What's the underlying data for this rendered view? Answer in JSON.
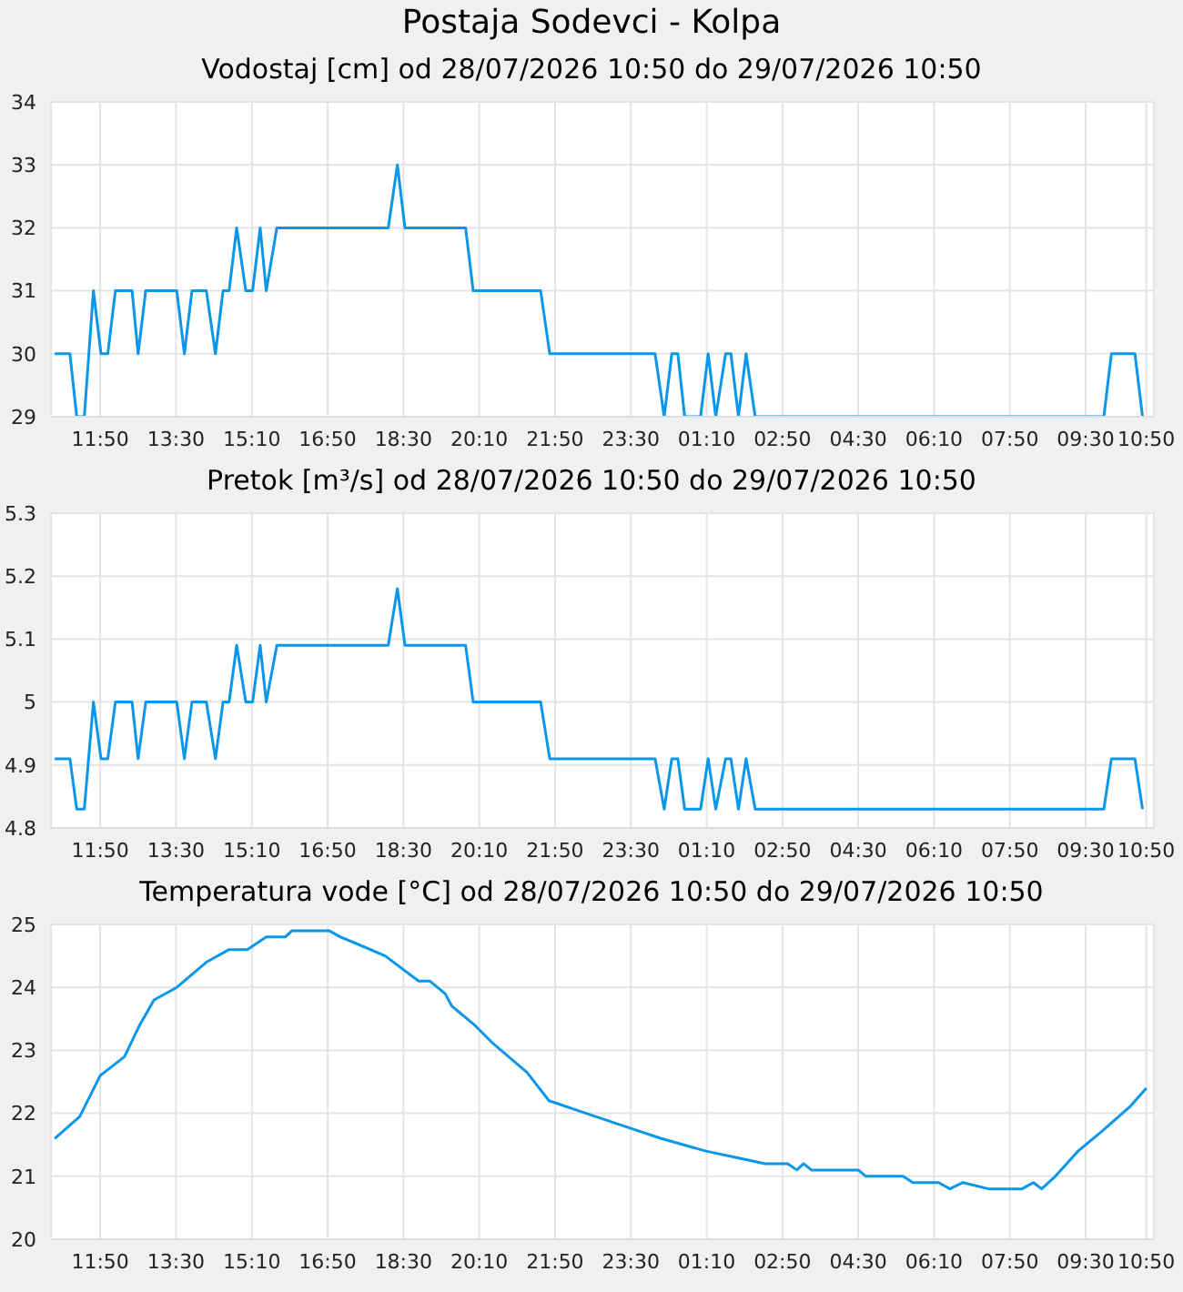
{
  "chart_data": [
    {
      "type": "line",
      "title": "Postaja Sodevci - Kolpa",
      "subtitle": "Vodostaj [cm] od 28/07/2026 10:50 do 29/07/2026 10:50",
      "grid": true,
      "legend": false,
      "marker": "none",
      "xlim": [
        "2026-07-28T10:45",
        "2026-07-29T11:00"
      ],
      "xticks": [
        {
          "value": "2026-07-28T11:50",
          "label": "11:50"
        },
        {
          "value": "2026-07-28T13:30",
          "label": "13:30"
        },
        {
          "value": "2026-07-28T15:10",
          "label": "15:10"
        },
        {
          "value": "2026-07-28T16:50",
          "label": "16:50"
        },
        {
          "value": "2026-07-28T18:30",
          "label": "18:30"
        },
        {
          "value": "2026-07-28T20:10",
          "label": "20:10"
        },
        {
          "value": "2026-07-28T21:50",
          "label": "21:50"
        },
        {
          "value": "2026-07-28T23:30",
          "label": "23:30"
        },
        {
          "value": "2026-07-29T01:10",
          "label": "01:10"
        },
        {
          "value": "2026-07-29T02:50",
          "label": "02:50"
        },
        {
          "value": "2026-07-29T04:30",
          "label": "04:30"
        },
        {
          "value": "2026-07-29T06:10",
          "label": "06:10"
        },
        {
          "value": "2026-07-29T07:50",
          "label": "07:50"
        },
        {
          "value": "2026-07-29T09:30",
          "label": "09:30"
        },
        {
          "value": "2026-07-29T10:50",
          "label": "10:50"
        }
      ],
      "ylim": [
        29,
        34
      ],
      "yticks": [
        29,
        30,
        31,
        32,
        33,
        34
      ],
      "series": [
        {
          "color": "#0a96ea",
          "x": [
            "2026-07-28T10:50",
            "2026-07-28T11:10",
            "2026-07-28T11:19",
            "2026-07-28T11:29",
            "2026-07-28T11:41",
            "2026-07-28T11:51",
            "2026-07-28T12:00",
            "2026-07-28T12:10",
            "2026-07-28T12:32",
            "2026-07-28T12:40",
            "2026-07-28T12:50",
            "2026-07-28T13:31",
            "2026-07-28T13:41",
            "2026-07-28T13:51",
            "2026-07-28T14:10",
            "2026-07-28T14:22",
            "2026-07-28T14:32",
            "2026-07-28T14:40",
            "2026-07-28T14:50",
            "2026-07-28T15:02",
            "2026-07-28T15:11",
            "2026-07-28T15:21",
            "2026-07-28T15:29",
            "2026-07-28T15:43",
            "2026-07-28T18:10",
            "2026-07-28T18:22",
            "2026-07-28T18:32",
            "2026-07-28T19:52",
            "2026-07-28T20:02",
            "2026-07-28T21:31",
            "2026-07-28T21:43",
            "2026-07-29T00:02",
            "2026-07-29T00:14",
            "2026-07-29T00:24",
            "2026-07-29T00:32",
            "2026-07-29T00:41",
            "2026-07-29T01:02",
            "2026-07-29T01:12",
            "2026-07-29T01:22",
            "2026-07-29T01:35",
            "2026-07-29T01:42",
            "2026-07-29T01:52",
            "2026-07-29T02:02",
            "2026-07-29T02:14",
            "2026-07-29T09:54",
            "2026-07-29T10:04",
            "2026-07-29T10:35",
            "2026-07-29T10:45"
          ],
          "values": [
            30,
            30,
            29,
            29,
            31,
            30,
            30,
            31,
            31,
            30,
            31,
            31,
            30,
            31,
            31,
            30,
            31,
            31,
            32,
            31,
            31,
            32,
            31,
            32,
            32,
            33,
            32,
            32,
            31,
            31,
            30,
            30,
            29,
            30,
            30,
            29,
            29,
            30,
            29,
            30,
            30,
            29,
            30,
            29,
            29,
            30,
            30,
            29
          ]
        }
      ]
    },
    {
      "type": "line",
      "title": "Pretok [m³/s] od 28/07/2026 10:50 do 29/07/2026 10:50",
      "grid": true,
      "legend": false,
      "marker": "none",
      "xlim": [
        "2026-07-28T10:45",
        "2026-07-29T11:00"
      ],
      "xticks": [
        {
          "value": "2026-07-28T11:50",
          "label": "11:50"
        },
        {
          "value": "2026-07-28T13:30",
          "label": "13:30"
        },
        {
          "value": "2026-07-28T15:10",
          "label": "15:10"
        },
        {
          "value": "2026-07-28T16:50",
          "label": "16:50"
        },
        {
          "value": "2026-07-28T18:30",
          "label": "18:30"
        },
        {
          "value": "2026-07-28T20:10",
          "label": "20:10"
        },
        {
          "value": "2026-07-28T21:50",
          "label": "21:50"
        },
        {
          "value": "2026-07-28T23:30",
          "label": "23:30"
        },
        {
          "value": "2026-07-29T01:10",
          "label": "01:10"
        },
        {
          "value": "2026-07-29T02:50",
          "label": "02:50"
        },
        {
          "value": "2026-07-29T04:30",
          "label": "04:30"
        },
        {
          "value": "2026-07-29T06:10",
          "label": "06:10"
        },
        {
          "value": "2026-07-29T07:50",
          "label": "07:50"
        },
        {
          "value": "2026-07-29T09:30",
          "label": "09:30"
        },
        {
          "value": "2026-07-29T10:50",
          "label": "10:50"
        }
      ],
      "ylim": [
        4.8,
        5.3
      ],
      "yticks": [
        4.8,
        4.9,
        5,
        5.1,
        5.2,
        5.3
      ],
      "series": [
        {
          "color": "#0a96ea",
          "x": [
            "2026-07-28T10:50",
            "2026-07-28T11:10",
            "2026-07-28T11:19",
            "2026-07-28T11:29",
            "2026-07-28T11:41",
            "2026-07-28T11:51",
            "2026-07-28T12:00",
            "2026-07-28T12:10",
            "2026-07-28T12:32",
            "2026-07-28T12:40",
            "2026-07-28T12:50",
            "2026-07-28T13:31",
            "2026-07-28T13:41",
            "2026-07-28T13:51",
            "2026-07-28T14:10",
            "2026-07-28T14:22",
            "2026-07-28T14:32",
            "2026-07-28T14:40",
            "2026-07-28T14:50",
            "2026-07-28T15:02",
            "2026-07-28T15:11",
            "2026-07-28T15:21",
            "2026-07-28T15:29",
            "2026-07-28T15:43",
            "2026-07-28T18:10",
            "2026-07-28T18:22",
            "2026-07-28T18:32",
            "2026-07-28T19:52",
            "2026-07-28T20:02",
            "2026-07-28T21:31",
            "2026-07-28T21:43",
            "2026-07-29T00:02",
            "2026-07-29T00:14",
            "2026-07-29T00:24",
            "2026-07-29T00:32",
            "2026-07-29T00:41",
            "2026-07-29T01:02",
            "2026-07-29T01:12",
            "2026-07-29T01:22",
            "2026-07-29T01:35",
            "2026-07-29T01:42",
            "2026-07-29T01:52",
            "2026-07-29T02:02",
            "2026-07-29T02:14",
            "2026-07-29T09:54",
            "2026-07-29T10:04",
            "2026-07-29T10:35",
            "2026-07-29T10:45"
          ],
          "values": [
            4.91,
            4.91,
            4.83,
            4.83,
            5.0,
            4.91,
            4.91,
            5.0,
            5.0,
            4.91,
            5.0,
            5.0,
            4.91,
            5.0,
            5.0,
            4.91,
            5.0,
            5.0,
            5.09,
            5.0,
            5.0,
            5.09,
            5.0,
            5.09,
            5.09,
            5.18,
            5.09,
            5.09,
            5.0,
            5.0,
            4.91,
            4.91,
            4.83,
            4.91,
            4.91,
            4.83,
            4.83,
            4.91,
            4.83,
            4.91,
            4.91,
            4.83,
            4.91,
            4.83,
            4.83,
            4.91,
            4.91,
            4.83
          ]
        }
      ]
    },
    {
      "type": "line",
      "title": "Temperatura vode [°C] od 28/07/2026 10:50 do 29/07/2026 10:50",
      "grid": true,
      "legend": false,
      "marker": "none",
      "xlim": [
        "2026-07-28T10:45",
        "2026-07-29T11:00"
      ],
      "xticks": [
        {
          "value": "2026-07-28T11:50",
          "label": "11:50"
        },
        {
          "value": "2026-07-28T13:30",
          "label": "13:30"
        },
        {
          "value": "2026-07-28T15:10",
          "label": "15:10"
        },
        {
          "value": "2026-07-28T16:50",
          "label": "16:50"
        },
        {
          "value": "2026-07-28T18:30",
          "label": "18:30"
        },
        {
          "value": "2026-07-28T20:10",
          "label": "20:10"
        },
        {
          "value": "2026-07-28T21:50",
          "label": "21:50"
        },
        {
          "value": "2026-07-28T23:30",
          "label": "23:30"
        },
        {
          "value": "2026-07-29T01:10",
          "label": "01:10"
        },
        {
          "value": "2026-07-29T02:50",
          "label": "02:50"
        },
        {
          "value": "2026-07-29T04:30",
          "label": "04:30"
        },
        {
          "value": "2026-07-29T06:10",
          "label": "06:10"
        },
        {
          "value": "2026-07-29T07:50",
          "label": "07:50"
        },
        {
          "value": "2026-07-29T09:30",
          "label": "09:30"
        },
        {
          "value": "2026-07-29T10:50",
          "label": "10:50"
        }
      ],
      "ylim": [
        20,
        25
      ],
      "yticks": [
        20,
        21,
        22,
        23,
        24,
        25
      ],
      "series": [
        {
          "color": "#0a96ea",
          "x": [
            "2026-07-28T10:50",
            "2026-07-28T11:23",
            "2026-07-28T11:50",
            "2026-07-28T12:22",
            "2026-07-28T12:42",
            "2026-07-28T13:01",
            "2026-07-28T13:31",
            "2026-07-28T14:10",
            "2026-07-28T14:40",
            "2026-07-28T15:04",
            "2026-07-28T15:29",
            "2026-07-28T15:54",
            "2026-07-28T16:03",
            "2026-07-28T16:52",
            "2026-07-28T17:07",
            "2026-07-28T17:27",
            "2026-07-28T18:06",
            "2026-07-28T18:50",
            "2026-07-28T19:05",
            "2026-07-28T19:25",
            "2026-07-28T19:34",
            "2026-07-28T20:04",
            "2026-07-28T20:29",
            "2026-07-28T21:13",
            "2026-07-28T21:42",
            "2026-07-28T22:31",
            "2026-07-28T23:20",
            "2026-07-29T00:10",
            "2026-07-29T01:09",
            "2026-07-29T01:48",
            "2026-07-29T02:27",
            "2026-07-29T02:57",
            "2026-07-29T03:09",
            "2026-07-29T03:18",
            "2026-07-29T03:28",
            "2026-07-29T04:30",
            "2026-07-29T04:40",
            "2026-07-29T05:29",
            "2026-07-29T05:42",
            "2026-07-29T06:16",
            "2026-07-29T06:31",
            "2026-07-29T06:48",
            "2026-07-29T07:22",
            "2026-07-29T08:06",
            "2026-07-29T08:21",
            "2026-07-29T08:32",
            "2026-07-29T08:50",
            "2026-07-29T09:20",
            "2026-07-29T09:50",
            "2026-07-29T10:28",
            "2026-07-29T10:50"
          ],
          "values": [
            21.6,
            21.95,
            22.6,
            22.9,
            23.4,
            23.8,
            24.0,
            24.4,
            24.6,
            24.6,
            24.8,
            24.8,
            24.9,
            24.9,
            24.8,
            24.7,
            24.5,
            24.1,
            24.1,
            23.9,
            23.7,
            23.4,
            23.1,
            22.65,
            22.2,
            22.0,
            21.8,
            21.6,
            21.4,
            21.3,
            21.2,
            21.2,
            21.1,
            21.2,
            21.1,
            21.1,
            21.0,
            21.0,
            20.9,
            20.9,
            20.8,
            20.9,
            20.8,
            20.8,
            20.9,
            20.8,
            21.0,
            21.4,
            21.7,
            22.1,
            22.4
          ]
        }
      ]
    }
  ]
}
